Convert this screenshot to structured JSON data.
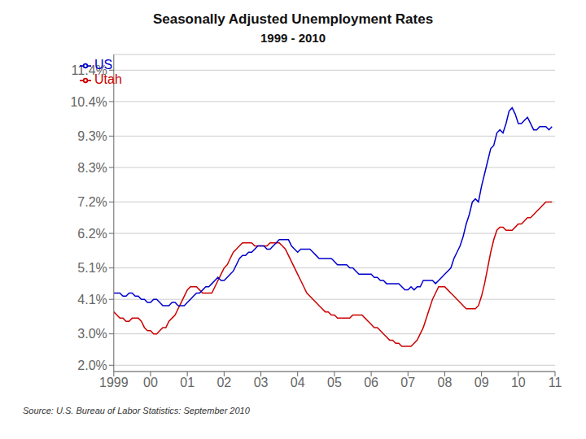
{
  "chart_data": {
    "type": "line",
    "title": "Seasonally Adjusted Unemployment Rates",
    "subtitle": "1999 - 2010",
    "source": "Source: U.S. Bureau of Labor Statistics: September 2010",
    "x": [
      1999,
      1999.083333,
      1999.166667,
      1999.25,
      1999.333333,
      1999.416667,
      1999.5,
      1999.583333,
      1999.666667,
      1999.75,
      1999.833333,
      1999.916667,
      2000,
      2000.083333,
      2000.166667,
      2000.25,
      2000.333333,
      2000.416667,
      2000.5,
      2000.583333,
      2000.666667,
      2000.75,
      2000.833333,
      2000.916667,
      2001,
      2001.083333,
      2001.166667,
      2001.25,
      2001.333333,
      2001.416667,
      2001.5,
      2001.583333,
      2001.666667,
      2001.75,
      2001.833333,
      2001.916667,
      2002,
      2002.083333,
      2002.166667,
      2002.25,
      2002.333333,
      2002.416667,
      2002.5,
      2002.583333,
      2002.666667,
      2002.75,
      2002.833333,
      2002.916667,
      2003,
      2003.083333,
      2003.166667,
      2003.25,
      2003.333333,
      2003.416667,
      2003.5,
      2003.583333,
      2003.666667,
      2003.75,
      2003.833333,
      2003.916667,
      2004,
      2004.083333,
      2004.166667,
      2004.25,
      2004.333333,
      2004.416667,
      2004.5,
      2004.583333,
      2004.666667,
      2004.75,
      2004.833333,
      2004.916667,
      2005,
      2005.083333,
      2005.166667,
      2005.25,
      2005.333333,
      2005.416667,
      2005.5,
      2005.583333,
      2005.666667,
      2005.75,
      2005.833333,
      2005.916667,
      2006,
      2006.083333,
      2006.166667,
      2006.25,
      2006.333333,
      2006.416667,
      2006.5,
      2006.583333,
      2006.666667,
      2006.75,
      2006.833333,
      2006.916667,
      2007,
      2007.083333,
      2007.166667,
      2007.25,
      2007.333333,
      2007.416667,
      2007.5,
      2007.583333,
      2007.666667,
      2007.75,
      2007.833333,
      2007.916667,
      2008,
      2008.083333,
      2008.166667,
      2008.25,
      2008.333333,
      2008.416667,
      2008.5,
      2008.583333,
      2008.666667,
      2008.75,
      2008.833333,
      2008.916667,
      2009,
      2009.083333,
      2009.166667,
      2009.25,
      2009.333333,
      2009.416667,
      2009.5,
      2009.583333,
      2009.666667,
      2009.75,
      2009.833333,
      2009.916667,
      2010,
      2010.083333,
      2010.166667,
      2010.25,
      2010.333333,
      2010.416667,
      2010.5,
      2010.583333,
      2010.666667,
      2010.75,
      2010.833333,
      2010.916667
    ],
    "series": [
      {
        "name": "Utah",
        "color": "#cc0000",
        "values": [
          3.7,
          3.6,
          3.5,
          3.5,
          3.4,
          3.4,
          3.5,
          3.5,
          3.5,
          3.4,
          3.2,
          3.1,
          3.1,
          3.0,
          3.0,
          3.1,
          3.2,
          3.2,
          3.4,
          3.5,
          3.6,
          3.8,
          4.0,
          4.2,
          4.4,
          4.5,
          4.5,
          4.5,
          4.4,
          4.3,
          4.3,
          4.3,
          4.3,
          4.5,
          4.7,
          4.9,
          5.1,
          5.2,
          5.4,
          5.6,
          5.7,
          5.8,
          5.9,
          5.9,
          5.9,
          5.9,
          5.8,
          5.8,
          5.8,
          5.8,
          5.8,
          5.9,
          5.9,
          5.9,
          5.9,
          5.8,
          5.7,
          5.5,
          5.3,
          5.1,
          4.9,
          4.7,
          4.5,
          4.3,
          4.2,
          4.1,
          4.0,
          3.9,
          3.8,
          3.7,
          3.7,
          3.6,
          3.6,
          3.5,
          3.5,
          3.5,
          3.5,
          3.5,
          3.6,
          3.6,
          3.6,
          3.6,
          3.5,
          3.4,
          3.3,
          3.2,
          3.2,
          3.1,
          3.0,
          2.9,
          2.8,
          2.8,
          2.7,
          2.7,
          2.6,
          2.6,
          2.6,
          2.6,
          2.7,
          2.8,
          3.0,
          3.2,
          3.5,
          3.8,
          4.1,
          4.3,
          4.5,
          4.5,
          4.5,
          4.4,
          4.3,
          4.2,
          4.1,
          4.0,
          3.9,
          3.8,
          3.8,
          3.8,
          3.8,
          3.9,
          4.2,
          4.6,
          5.1,
          5.6,
          6.0,
          6.3,
          6.4,
          6.4,
          6.3,
          6.3,
          6.3,
          6.4,
          6.5,
          6.5,
          6.6,
          6.7,
          6.7,
          6.8,
          6.9,
          7.0,
          7.1,
          7.2,
          7.2,
          7.2
        ]
      },
      {
        "name": "US",
        "color": "#0000cc",
        "values": [
          4.3,
          4.3,
          4.3,
          4.2,
          4.2,
          4.3,
          4.3,
          4.2,
          4.2,
          4.1,
          4.1,
          4.0,
          4.0,
          4.1,
          4.1,
          4.0,
          3.9,
          3.9,
          3.9,
          4.0,
          4.0,
          3.9,
          3.9,
          3.9,
          4.0,
          4.1,
          4.2,
          4.3,
          4.3,
          4.4,
          4.5,
          4.5,
          4.6,
          4.7,
          4.8,
          4.7,
          4.7,
          4.8,
          4.9,
          5.0,
          5.2,
          5.4,
          5.5,
          5.5,
          5.6,
          5.6,
          5.7,
          5.8,
          5.8,
          5.8,
          5.7,
          5.7,
          5.8,
          5.9,
          6.0,
          6.0,
          6.0,
          6.0,
          5.8,
          5.7,
          5.6,
          5.7,
          5.7,
          5.7,
          5.7,
          5.6,
          5.5,
          5.4,
          5.4,
          5.4,
          5.4,
          5.4,
          5.3,
          5.2,
          5.2,
          5.2,
          5.2,
          5.1,
          5.1,
          5.0,
          4.9,
          4.9,
          4.9,
          4.9,
          4.9,
          4.8,
          4.8,
          4.7,
          4.7,
          4.6,
          4.6,
          4.6,
          4.6,
          4.6,
          4.5,
          4.4,
          4.4,
          4.5,
          4.4,
          4.5,
          4.5,
          4.7,
          4.7,
          4.7,
          4.7,
          4.6,
          4.7,
          4.8,
          4.9,
          5.0,
          5.1,
          5.4,
          5.6,
          5.8,
          6.1,
          6.5,
          6.8,
          7.2,
          7.3,
          7.2,
          7.7,
          8.1,
          8.5,
          8.9,
          9.0,
          9.4,
          9.5,
          9.4,
          9.7,
          10.1,
          10.2,
          10.0,
          9.7,
          9.7,
          9.8,
          9.9,
          9.7,
          9.5,
          9.5,
          9.6,
          9.6,
          9.6,
          9.5,
          9.6
        ]
      }
    ],
    "xlim": [
      1999,
      2011
    ],
    "xticks": [
      1999,
      {
        "value": 2000,
        "label": "00"
      },
      {
        "value": 2001,
        "label": "01"
      },
      {
        "value": 2002,
        "label": "02"
      },
      {
        "value": 2003,
        "label": "03"
      },
      {
        "value": 2004,
        "label": "04"
      },
      {
        "value": 2005,
        "label": "05"
      },
      {
        "value": 2006,
        "label": "06"
      },
      {
        "value": 2007,
        "label": "07"
      },
      {
        "value": 2008,
        "label": "08"
      },
      {
        "value": 2009,
        "label": "09"
      },
      {
        "value": 2010,
        "label": "10"
      },
      {
        "value": 2011,
        "label": "11"
      }
    ],
    "ylim": [
      1.8,
      11.9
    ],
    "yticks": [
      {
        "value": 2.0,
        "label": "2.0%"
      },
      {
        "value": 3.0,
        "label": "3.0%"
      },
      {
        "value": 4.1,
        "label": "4.1%"
      },
      {
        "value": 5.1,
        "label": "5.1%"
      },
      {
        "value": 6.2,
        "label": "6.2%"
      },
      {
        "value": 7.2,
        "label": "7.2%"
      },
      {
        "value": 8.3,
        "label": "8.3%"
      },
      {
        "value": 9.3,
        "label": "9.3%"
      },
      {
        "value": 10.4,
        "label": "10.4%"
      },
      {
        "value": 11.4,
        "label": "11.4%"
      }
    ],
    "grid": "y",
    "legend": "upper left"
  }
}
